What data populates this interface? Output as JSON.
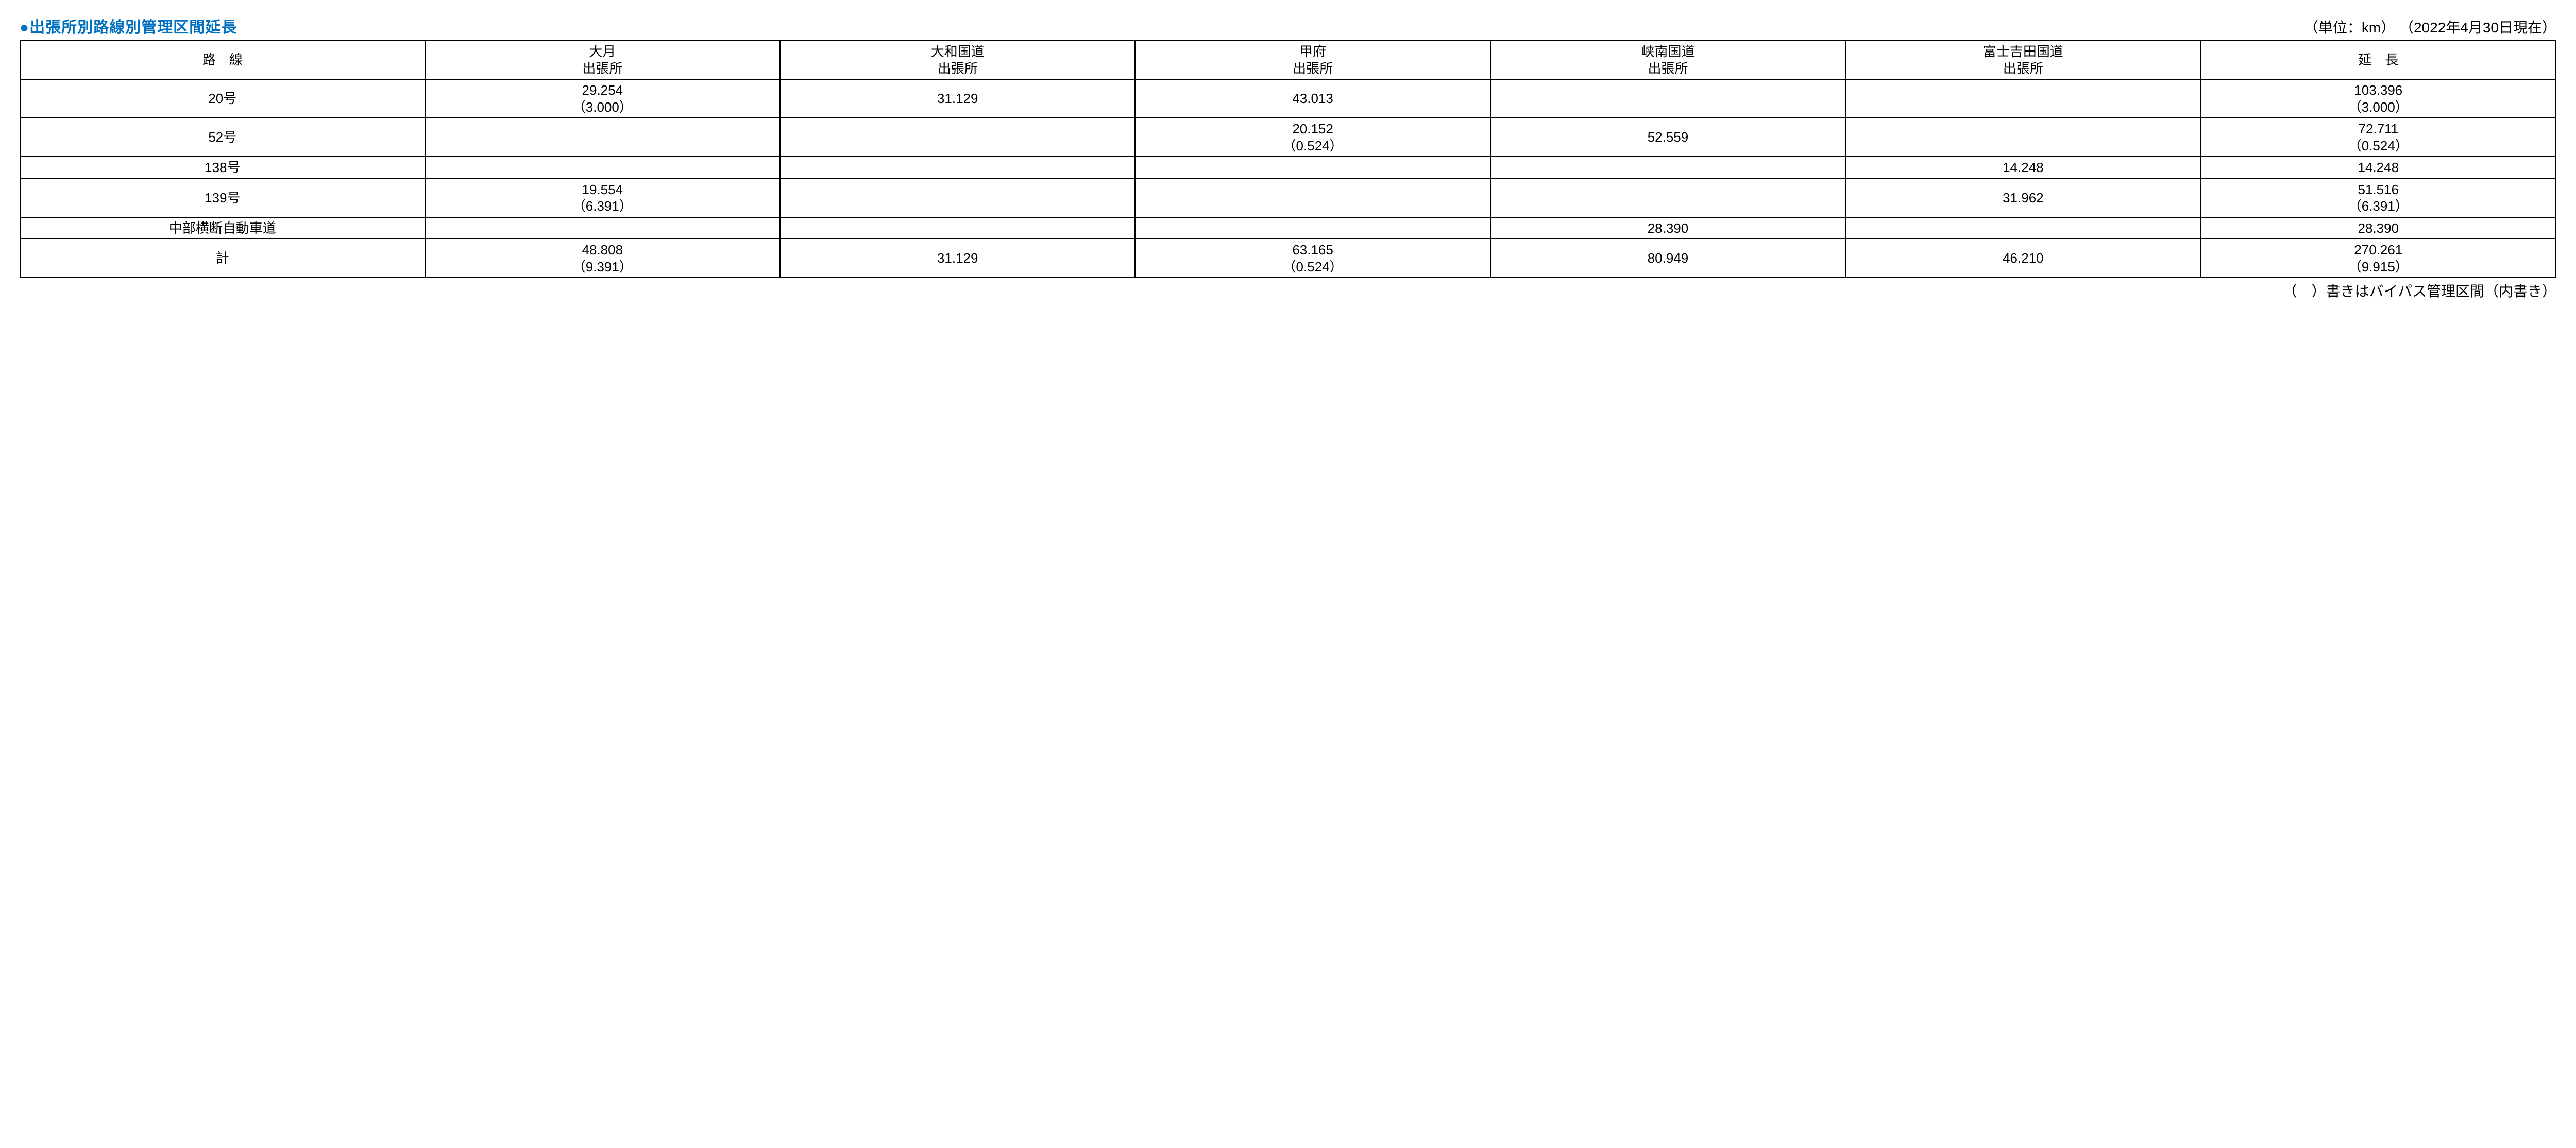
{
  "title": "出張所別路線別管理区間延長",
  "unit_label": "（単位：km）",
  "date_label": "（2022年4月30日現在）",
  "footnote": "（　）書きはバイパス管理区間（内書き）",
  "columns": {
    "route": "路　線",
    "otsuki": "大月\n出張所",
    "yamato": "大和国道\n出張所",
    "kofu": "甲府\n出張所",
    "kyonan": "峡南国道\n出張所",
    "fujiyoshida": "富士吉田国道\n出張所",
    "total": "延　長"
  },
  "rows": [
    {
      "route": "20号",
      "otsuki": "29.254\n（3.000）",
      "yamato": "31.129",
      "kofu": "43.013",
      "kyonan": "",
      "fujiyoshida": "",
      "total": "103.396\n（3.000）"
    },
    {
      "route": "52号",
      "otsuki": "",
      "yamato": "",
      "kofu": "20.152\n（0.524）",
      "kyonan": "52.559",
      "fujiyoshida": "",
      "total": "72.711\n（0.524）"
    },
    {
      "route": "138号",
      "otsuki": "",
      "yamato": "",
      "kofu": "",
      "kyonan": "",
      "fujiyoshida": "14.248",
      "total": "14.248"
    },
    {
      "route": "139号",
      "otsuki": "19.554\n（6.391）",
      "yamato": "",
      "kofu": "",
      "kyonan": "",
      "fujiyoshida": "31.962",
      "total": "51.516\n（6.391）"
    },
    {
      "route": "中部横断自動車道",
      "otsuki": "",
      "yamato": "",
      "kofu": "",
      "kyonan": "28.390",
      "fujiyoshida": "",
      "total": "28.390"
    },
    {
      "route": "計",
      "otsuki": "48.808\n（9.391）",
      "yamato": "31.129",
      "kofu": "63.165\n（0.524）",
      "kyonan": "80.949",
      "fujiyoshida": "46.210",
      "total": "270.261\n（9.915）"
    }
  ]
}
